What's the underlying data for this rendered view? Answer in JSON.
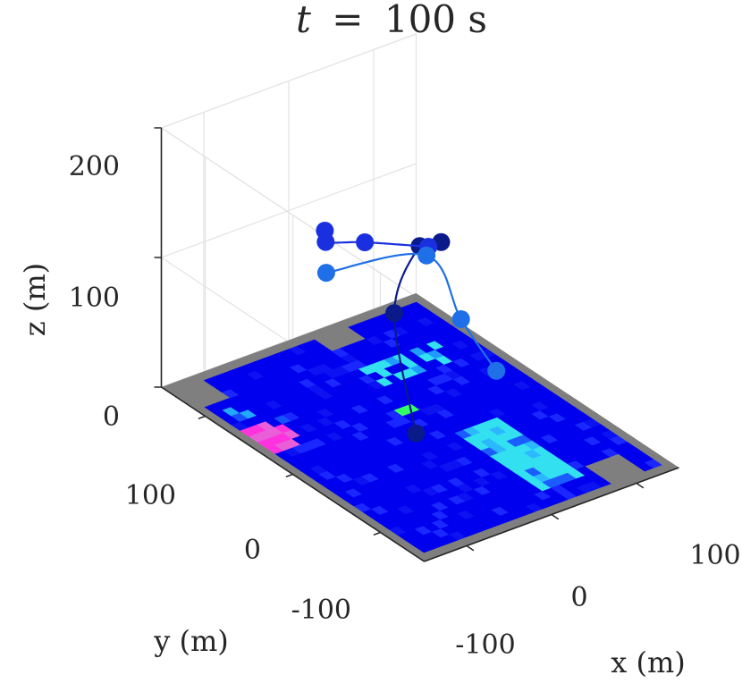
{
  "chart_data": {
    "type": "3d-plot",
    "title": {
      "variable": "t",
      "equals": "=",
      "value": "100 s"
    },
    "axes": {
      "x": {
        "label": "x (m)",
        "ticks": [
          -100,
          0,
          100
        ],
        "tick_labels": [
          "-100",
          "0",
          "100"
        ],
        "range": [
          -150,
          150
        ]
      },
      "y": {
        "label": "y (m)",
        "ticks": [
          -100,
          0,
          100
        ],
        "tick_labels": [
          "-100",
          "0",
          "100"
        ],
        "range": [
          -150,
          150
        ]
      },
      "z": {
        "label": "z (m)",
        "ticks": [
          0,
          100,
          200
        ],
        "tick_labels": [
          "0",
          "100",
          "200"
        ],
        "range": [
          0,
          200
        ]
      }
    },
    "grid": true,
    "surface": {
      "description_colors": {
        "background_gray": "#7f7f7f",
        "base_blue": "#0000ee",
        "cyan": "#33e0f0",
        "green": "#33ff66",
        "magenta": "#ff33dd"
      }
    },
    "series": [
      {
        "color": "#0a1a8a",
        "points": [
          [
            -10,
            -5,
            0
          ],
          [
            -15,
            15,
            85
          ],
          [
            20,
            20,
            126
          ],
          [
            35,
            10,
            130
          ]
        ]
      },
      {
        "color": "#1a30e0",
        "points": [
          [
            -40,
            70,
            130
          ],
          [
            -70,
            40,
            142
          ],
          [
            -60,
            5,
            155
          ],
          [
            20,
            10,
            130
          ]
        ]
      },
      {
        "color": "#1f6fe8",
        "points": [
          [
            -90,
            20,
            132
          ],
          [
            90,
            80,
            75
          ],
          [
            110,
            60,
            30
          ],
          [
            100,
            10,
            15
          ]
        ]
      }
    ]
  }
}
